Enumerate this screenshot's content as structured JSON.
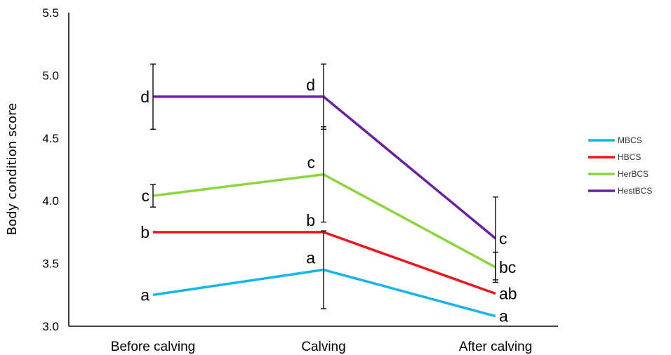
{
  "chart_data": {
    "type": "line",
    "categories": [
      "Before calving",
      "Calving",
      "After calving"
    ],
    "ylabel": "Body condition score",
    "xlabel": "",
    "ylim": [
      3.0,
      5.5
    ],
    "yticks": [
      "3.0",
      "3.5",
      "4.0",
      "4.5",
      "5.0",
      "5.5"
    ],
    "grid": false,
    "legend_position": "right",
    "series": [
      {
        "name": "MBCS",
        "color": "#17b4ea",
        "values": [
          3.25,
          3.45,
          3.08
        ],
        "error": [
          null,
          0.31,
          null
        ],
        "labels": [
          "a",
          "a",
          "a"
        ]
      },
      {
        "name": "HBCS",
        "color": "#f0141c",
        "values": [
          3.75,
          3.75,
          3.26
        ],
        "error": [
          null,
          null,
          null
        ],
        "labels": [
          "b",
          "b",
          "ab"
        ]
      },
      {
        "name": "HerBCS",
        "color": "#8bd53f",
        "values": [
          4.04,
          4.21,
          3.47
        ],
        "error": [
          0.09,
          0.38,
          0.12
        ],
        "labels": [
          "c",
          "c",
          "bc"
        ]
      },
      {
        "name": "HestBCS",
        "color": "#6b1fa5",
        "values": [
          4.83,
          4.83,
          3.7
        ],
        "error": [
          0.26,
          0.26,
          0.33
        ],
        "labels": [
          "d",
          "d",
          "c"
        ]
      }
    ]
  }
}
